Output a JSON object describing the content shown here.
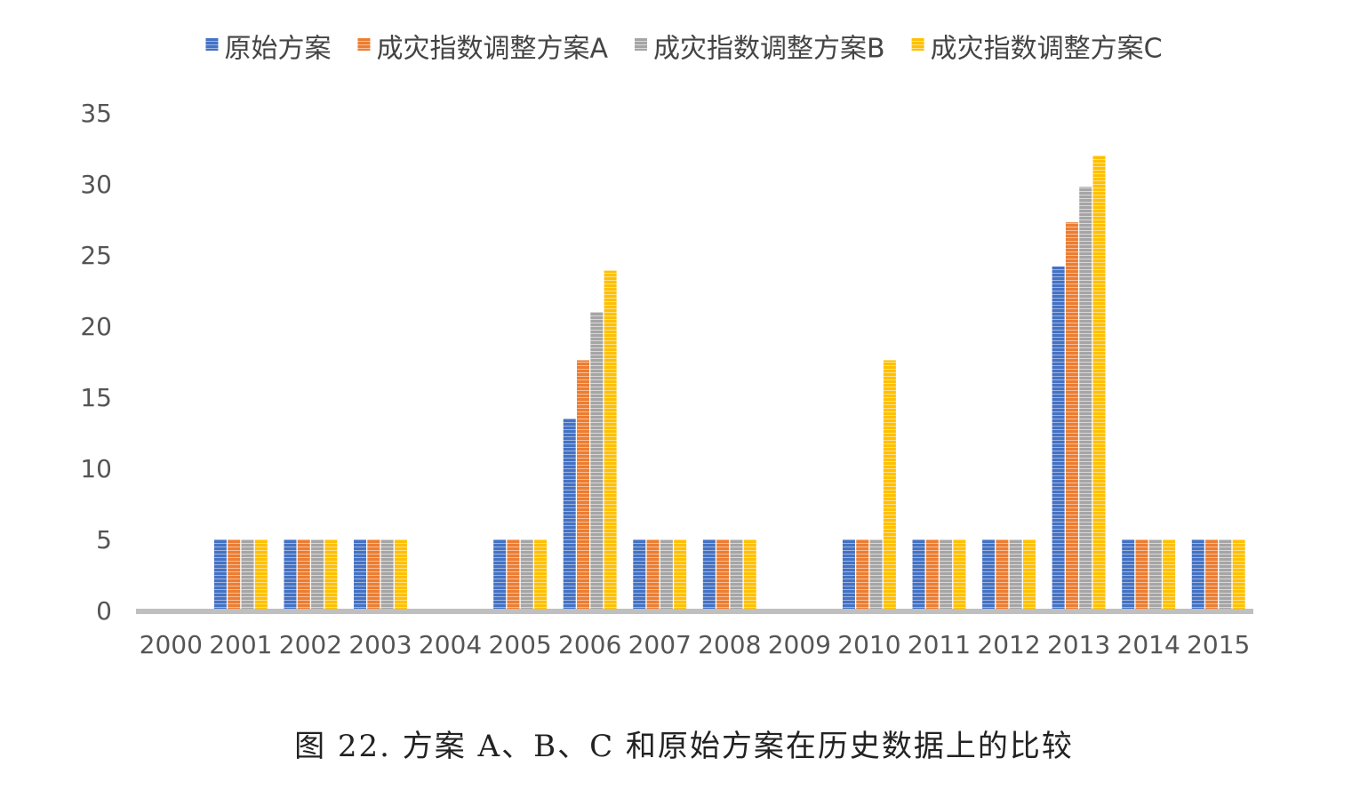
{
  "caption": "图 22. 方案 A、B、C 和原始方案在历史数据上的比较",
  "chart_data": {
    "type": "bar",
    "title": "",
    "xlabel": "",
    "ylabel": "",
    "ylim": [
      0,
      35
    ],
    "yticks": [
      0,
      5,
      10,
      15,
      20,
      25,
      30,
      35
    ],
    "legend_position": "top",
    "categories": [
      "2000",
      "2001",
      "2002",
      "2003",
      "2004",
      "2005",
      "2006",
      "2007",
      "2008",
      "2009",
      "2010",
      "2011",
      "2012",
      "2013",
      "2014",
      "2015"
    ],
    "series": [
      {
        "name": "原始方案",
        "color": "#4472C4",
        "values": [
          0,
          5,
          5,
          5,
          0,
          5,
          13.5,
          5,
          5,
          0,
          5,
          5,
          5,
          24.2,
          5,
          5
        ]
      },
      {
        "name": "成灾指数调整方案A",
        "color": "#ED7D31",
        "values": [
          0,
          5,
          5,
          5,
          0,
          5,
          17.6,
          5,
          5,
          0,
          5,
          5,
          5,
          27.3,
          5,
          5
        ]
      },
      {
        "name": "成灾指数调整方案B",
        "color": "#A5A5A5",
        "values": [
          0,
          5,
          5,
          5,
          0,
          5,
          21.0,
          5,
          5,
          0,
          5,
          5,
          5,
          29.8,
          5,
          5
        ]
      },
      {
        "name": "成灾指数调整方案C",
        "color": "#FFC000",
        "values": [
          0,
          5,
          5,
          5,
          0,
          5,
          23.9,
          5,
          5,
          0,
          17.6,
          5,
          5,
          32.0,
          5,
          5
        ]
      }
    ]
  }
}
